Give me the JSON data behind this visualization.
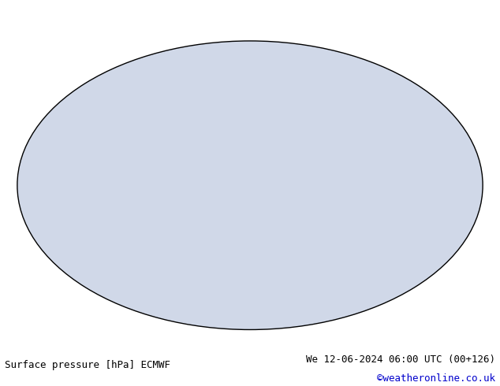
{
  "title_left": "Surface pressure [hPa] ECMWF",
  "title_right": "We 12-06-2024 06:00 UTC (00+126)",
  "copyright": "©weatheronline.co.uk",
  "background_color": "#ffffff",
  "map_ocean_color": "#d0d8e8",
  "map_land_color": "#c8ddc8",
  "map_highlight_color": "#a8d8a8",
  "contour_interval": 4,
  "pressure_min": 960,
  "pressure_max": 1040,
  "isobar_1013_color": "#000000",
  "isobar_above_color": "#cc0000",
  "isobar_below_color": "#0000cc",
  "label_fontsize": 6,
  "title_fontsize": 9,
  "copyright_color": "#0000cc",
  "fig_width": 6.34,
  "fig_height": 4.9,
  "dpi": 100
}
